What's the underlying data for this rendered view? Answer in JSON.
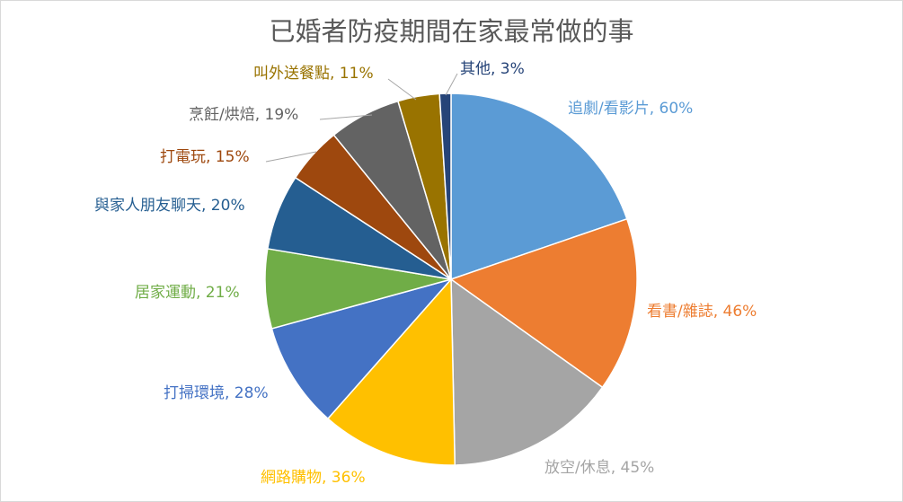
{
  "chart_data": {
    "type": "pie",
    "title": "已婚者防疫期間在家最常做的事",
    "categories": [
      "追劇/看影片",
      "看書/雜誌",
      "放空/休息",
      "網路購物",
      "打掃環境",
      "居家運動",
      "與家人朋友聊天",
      "打電玩",
      "烹飪/烘焙",
      "叫外送餐點",
      "其他"
    ],
    "values": [
      60,
      46,
      45,
      36,
      28,
      21,
      20,
      15,
      19,
      11,
      3
    ],
    "labels": [
      "追劇/看影片, 60%",
      "看書/雜誌, 46%",
      "放空/休息, 45%",
      "網路購物, 36%",
      "打掃環境, 28%",
      "居家運動, 21%",
      "與家人朋友聊天, 20%",
      "打電玩, 15%",
      "烹飪/烘焙, 19%",
      "叫外送餐點, 11%",
      "其他, 3%"
    ],
    "colors": [
      "#5b9bd5",
      "#ed7d31",
      "#a5a5a5",
      "#ffc000",
      "#4472c4",
      "#70ad47",
      "#255e91",
      "#9e480e",
      "#636363",
      "#997300",
      "#264478"
    ],
    "label_colors": [
      "#5b9bd5",
      "#ed7d31",
      "#a5a5a5",
      "#ffc000",
      "#4472c4",
      "#70ad47",
      "#255e91",
      "#9e480e",
      "#636363",
      "#997300",
      "#264478"
    ],
    "legend": "none"
  }
}
